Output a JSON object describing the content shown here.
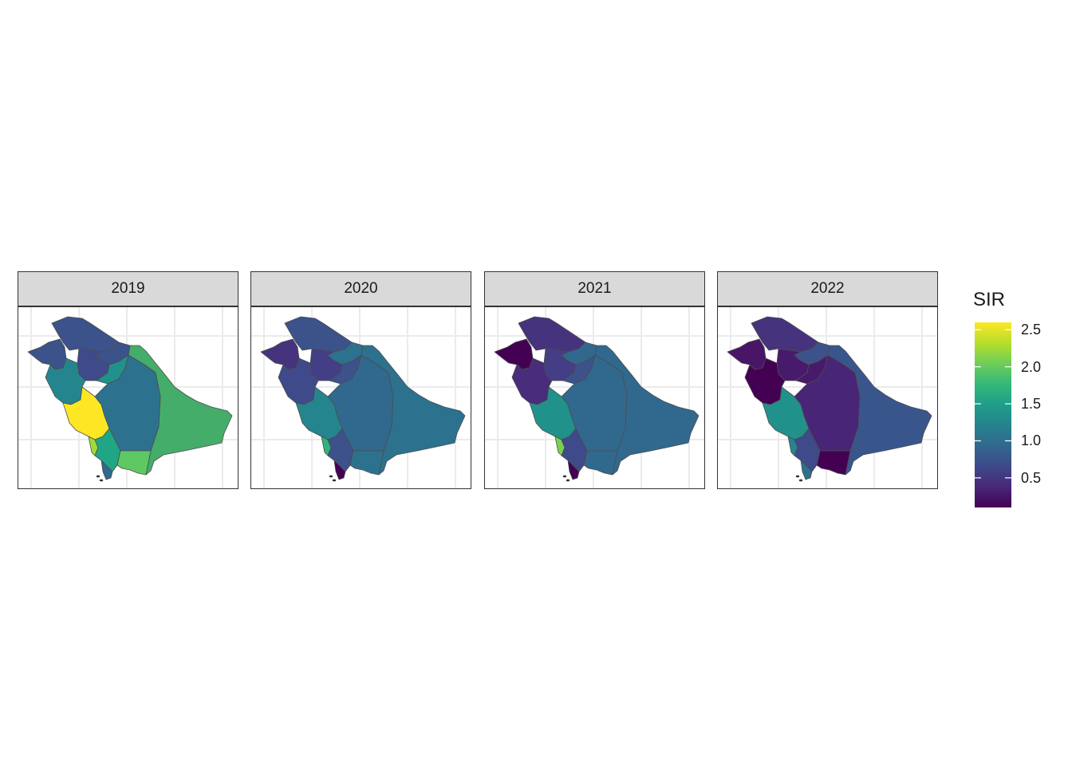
{
  "panels": [
    {
      "year": "2019",
      "regions": {
        "tabuk": "#3b528b",
        "jawf": "#3b528b",
        "northern": "#3b528b",
        "hail": "#3e4a89",
        "qassim": "#21918c",
        "madinah": "#25858e",
        "makkah": "#fde725",
        "riyadh": "#2c728e",
        "eastern": "#44ad6a",
        "baha": "#9fda3a",
        "asir": "#21a685",
        "najran": "#5ec962",
        "jazan": "#31688e"
      }
    },
    {
      "year": "2020",
      "regions": {
        "tabuk": "#46337e",
        "jawf": "#3b528b",
        "northern": "#2c728e",
        "hail": "#433e85",
        "qassim": "#3b528b",
        "madinah": "#3e4a89",
        "makkah": "#25858e",
        "riyadh": "#31688e",
        "eastern": "#2c728e",
        "baha": "#2fb47c",
        "asir": "#3b528b",
        "najran": "#2c728e",
        "jazan": "#440154"
      }
    },
    {
      "year": "2021",
      "regions": {
        "tabuk": "#440154",
        "jawf": "#46337e",
        "northern": "#31688e",
        "hail": "#433e85",
        "qassim": "#3b528b",
        "madinah": "#472d7b",
        "makkah": "#21918c",
        "riyadh": "#31688e",
        "eastern": "#31688e",
        "baha": "#7ad151",
        "asir": "#3e4a89",
        "najran": "#31688e",
        "jazan": "#440154"
      }
    },
    {
      "year": "2022",
      "regions": {
        "tabuk": "#481567",
        "jawf": "#46337e",
        "northern": "#3b528b",
        "hail": "#481a6c",
        "qassim": "#481a6c",
        "madinah": "#440154",
        "makkah": "#21918c",
        "riyadh": "#482576",
        "eastern": "#39568c",
        "baha": "#25858e",
        "asir": "#3e4a89",
        "najran": "#440154",
        "jazan": "#2c728e"
      }
    }
  ],
  "legend": {
    "title": "SIR",
    "ticks": [
      "2.5",
      "2.0",
      "1.5",
      "1.0",
      "0.5"
    ],
    "tick_values": [
      2.5,
      2.0,
      1.5,
      1.0,
      0.5
    ],
    "range": [
      0.1,
      2.6
    ],
    "colors": [
      "#440154",
      "#482878",
      "#3e4989",
      "#31688e",
      "#26828e",
      "#1f9e89",
      "#35b779",
      "#6ece58",
      "#b5de2b",
      "#fde725"
    ]
  },
  "colors": {
    "strip_background": "#d9d9d9",
    "border": "#333333",
    "grid": "#ebebeb"
  }
}
